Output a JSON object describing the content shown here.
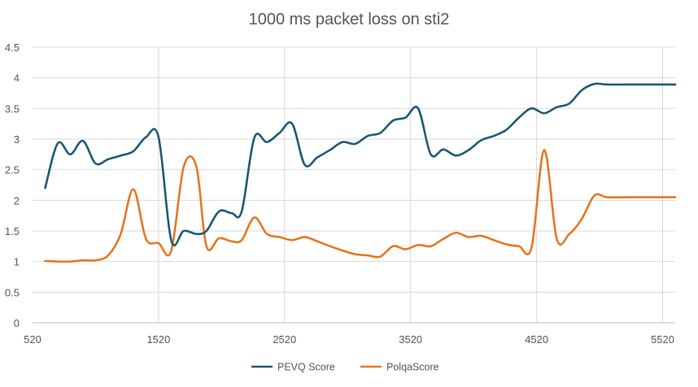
{
  "chart_data": {
    "type": "line",
    "title": "1000 ms packet loss on sti2",
    "xlabel": "",
    "ylabel": "",
    "xlim": [
      520,
      5620
    ],
    "ylim": [
      0,
      4.5
    ],
    "xticks": [
      "520",
      "1520",
      "2520",
      "3520",
      "4520",
      "5520"
    ],
    "xtick_values": [
      520,
      1520,
      2520,
      3520,
      4520,
      5520
    ],
    "yticks": [
      "0",
      "0.5",
      "1",
      "1.5",
      "2",
      "2.5",
      "3",
      "3.5",
      "4",
      "4.5"
    ],
    "ytick_values": [
      0,
      0.5,
      1,
      1.5,
      2,
      2.5,
      3,
      3.5,
      4,
      4.5
    ],
    "grid": true,
    "legend_position": "bottom",
    "series": [
      {
        "name": "PEVQ Score",
        "color": "#1F5A78",
        "points": [
          [
            620,
            2.2
          ],
          [
            720,
            2.93
          ],
          [
            820,
            2.75
          ],
          [
            920,
            2.97
          ],
          [
            1020,
            2.6
          ],
          [
            1120,
            2.67
          ],
          [
            1220,
            2.73
          ],
          [
            1320,
            2.8
          ],
          [
            1420,
            3.03
          ],
          [
            1520,
            3.03
          ],
          [
            1620,
            1.35
          ],
          [
            1720,
            1.5
          ],
          [
            1820,
            1.45
          ],
          [
            1900,
            1.5
          ],
          [
            2000,
            1.82
          ],
          [
            2100,
            1.79
          ],
          [
            2180,
            1.82
          ],
          [
            2280,
            3.02
          ],
          [
            2380,
            2.95
          ],
          [
            2480,
            3.1
          ],
          [
            2580,
            3.25
          ],
          [
            2680,
            2.58
          ],
          [
            2780,
            2.7
          ],
          [
            2880,
            2.82
          ],
          [
            2980,
            2.95
          ],
          [
            3080,
            2.92
          ],
          [
            3180,
            3.05
          ],
          [
            3280,
            3.1
          ],
          [
            3380,
            3.3
          ],
          [
            3480,
            3.35
          ],
          [
            3580,
            3.5
          ],
          [
            3680,
            2.75
          ],
          [
            3780,
            2.83
          ],
          [
            3880,
            2.73
          ],
          [
            3980,
            2.82
          ],
          [
            4080,
            2.98
          ],
          [
            4180,
            3.05
          ],
          [
            4280,
            3.15
          ],
          [
            4380,
            3.35
          ],
          [
            4480,
            3.5
          ],
          [
            4580,
            3.42
          ],
          [
            4680,
            3.52
          ],
          [
            4780,
            3.58
          ],
          [
            4880,
            3.8
          ],
          [
            4980,
            3.9
          ],
          [
            5080,
            3.89
          ],
          [
            5280,
            3.89
          ],
          [
            5480,
            3.89
          ],
          [
            5620,
            3.89
          ]
        ]
      },
      {
        "name": "PolqaScore",
        "color": "#E87722",
        "points": [
          [
            620,
            1.01
          ],
          [
            720,
            1.0
          ],
          [
            820,
            1.0
          ],
          [
            920,
            1.02
          ],
          [
            1020,
            1.02
          ],
          [
            1120,
            1.1
          ],
          [
            1220,
            1.45
          ],
          [
            1320,
            2.18
          ],
          [
            1420,
            1.37
          ],
          [
            1520,
            1.3
          ],
          [
            1620,
            1.17
          ],
          [
            1720,
            2.55
          ],
          [
            1820,
            2.55
          ],
          [
            1900,
            1.25
          ],
          [
            2000,
            1.38
          ],
          [
            2100,
            1.33
          ],
          [
            2180,
            1.35
          ],
          [
            2280,
            1.72
          ],
          [
            2380,
            1.45
          ],
          [
            2480,
            1.4
          ],
          [
            2580,
            1.35
          ],
          [
            2680,
            1.4
          ],
          [
            2780,
            1.33
          ],
          [
            2880,
            1.25
          ],
          [
            2980,
            1.18
          ],
          [
            3080,
            1.12
          ],
          [
            3180,
            1.1
          ],
          [
            3280,
            1.08
          ],
          [
            3380,
            1.25
          ],
          [
            3480,
            1.2
          ],
          [
            3580,
            1.27
          ],
          [
            3680,
            1.25
          ],
          [
            3780,
            1.37
          ],
          [
            3880,
            1.47
          ],
          [
            3980,
            1.4
          ],
          [
            4080,
            1.42
          ],
          [
            4180,
            1.35
          ],
          [
            4280,
            1.28
          ],
          [
            4380,
            1.25
          ],
          [
            4480,
            1.23
          ],
          [
            4580,
            2.82
          ],
          [
            4680,
            1.37
          ],
          [
            4780,
            1.45
          ],
          [
            4880,
            1.7
          ],
          [
            4980,
            2.08
          ],
          [
            5080,
            2.05
          ],
          [
            5280,
            2.05
          ],
          [
            5480,
            2.05
          ],
          [
            5620,
            2.05
          ]
        ]
      }
    ]
  }
}
